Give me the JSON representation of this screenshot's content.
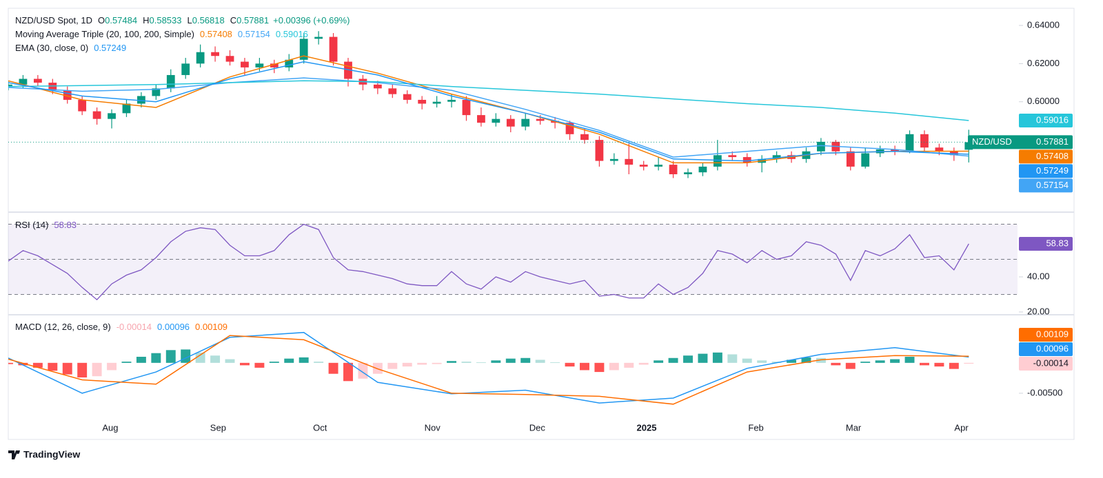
{
  "brand": "TradingView",
  "chart_data": [
    {
      "type": "candlestick",
      "title": "NZD/USD Spot, 1D",
      "ohlc_labels": [
        "O",
        "H",
        "L",
        "C"
      ],
      "change": "+0.00396 (+0.69%)",
      "price_label": "NZD/USD",
      "up_color": "#089981",
      "down_color": "#f23645",
      "xlim": [
        0,
        68.3
      ],
      "ylim": [
        0.5425,
        0.649
      ],
      "yticks": [
        {
          "value": 0.64,
          "label": "0.64000"
        },
        {
          "value": 0.62,
          "label": "0.62000"
        },
        {
          "value": 0.6,
          "label": "0.60000"
        }
      ],
      "x_labels": [
        {
          "index": 6.9,
          "label": "Aug"
        },
        {
          "index": 14.2,
          "label": "Sep"
        },
        {
          "index": 21.1,
          "label": "Oct"
        },
        {
          "index": 28.7,
          "label": "Nov"
        },
        {
          "index": 35.8,
          "label": "Dec"
        },
        {
          "index": 43.2,
          "label": "2025",
          "bold": true
        },
        {
          "index": 50.6,
          "label": "Feb"
        },
        {
          "index": 57.2,
          "label": "Mar"
        },
        {
          "index": 64.5,
          "label": "Apr"
        }
      ],
      "ohlc": [
        [
          0.608,
          0.611,
          0.606,
          0.609
        ],
        [
          0.609,
          0.614,
          0.607,
          0.612
        ],
        [
          0.612,
          0.614,
          0.608,
          0.61
        ],
        [
          0.61,
          0.612,
          0.604,
          0.606
        ],
        [
          0.606,
          0.608,
          0.599,
          0.601
        ],
        [
          0.601,
          0.603,
          0.593,
          0.595
        ],
        [
          0.595,
          0.597,
          0.588,
          0.591
        ],
        [
          0.591,
          0.596,
          0.586,
          0.594
        ],
        [
          0.594,
          0.601,
          0.592,
          0.599
        ],
        [
          0.599,
          0.605,
          0.597,
          0.603
        ],
        [
          0.603,
          0.609,
          0.601,
          0.607
        ],
        [
          0.607,
          0.617,
          0.605,
          0.614
        ],
        [
          0.614,
          0.623,
          0.612,
          0.62
        ],
        [
          0.62,
          0.63,
          0.618,
          0.626
        ],
        [
          0.626,
          0.629,
          0.621,
          0.624
        ],
        [
          0.624,
          0.627,
          0.619,
          0.621
        ],
        [
          0.621,
          0.623,
          0.614,
          0.618
        ],
        [
          0.618,
          0.623,
          0.616,
          0.62
        ],
        [
          0.62,
          0.622,
          0.615,
          0.618
        ],
        [
          0.618,
          0.625,
          0.616,
          0.622
        ],
        [
          0.622,
          0.636,
          0.62,
          0.633
        ],
        [
          0.633,
          0.637,
          0.63,
          0.634
        ],
        [
          0.634,
          0.636,
          0.619,
          0.621
        ],
        [
          0.621,
          0.623,
          0.608,
          0.612
        ],
        [
          0.612,
          0.614,
          0.606,
          0.609
        ],
        [
          0.609,
          0.611,
          0.604,
          0.607
        ],
        [
          0.607,
          0.609,
          0.602,
          0.604
        ],
        [
          0.604,
          0.606,
          0.599,
          0.601
        ],
        [
          0.601,
          0.603,
          0.596,
          0.599
        ],
        [
          0.599,
          0.603,
          0.597,
          0.6
        ],
        [
          0.6,
          0.604,
          0.597,
          0.601
        ],
        [
          0.601,
          0.603,
          0.59,
          0.593
        ],
        [
          0.593,
          0.597,
          0.587,
          0.589
        ],
        [
          0.589,
          0.594,
          0.587,
          0.591
        ],
        [
          0.591,
          0.593,
          0.584,
          0.587
        ],
        [
          0.587,
          0.594,
          0.585,
          0.591
        ],
        [
          0.591,
          0.593,
          0.588,
          0.59
        ],
        [
          0.59,
          0.592,
          0.586,
          0.589
        ],
        [
          0.589,
          0.59,
          0.58,
          0.583
        ],
        [
          0.583,
          0.586,
          0.578,
          0.58
        ],
        [
          0.58,
          0.582,
          0.566,
          0.569
        ],
        [
          0.569,
          0.573,
          0.567,
          0.57
        ],
        [
          0.57,
          0.578,
          0.562,
          0.567
        ],
        [
          0.567,
          0.569,
          0.564,
          0.566
        ],
        [
          0.566,
          0.571,
          0.564,
          0.567
        ],
        [
          0.567,
          0.569,
          0.56,
          0.562
        ],
        [
          0.562,
          0.565,
          0.56,
          0.563
        ],
        [
          0.563,
          0.568,
          0.561,
          0.566
        ],
        [
          0.566,
          0.58,
          0.564,
          0.572
        ],
        [
          0.572,
          0.574,
          0.569,
          0.571
        ],
        [
          0.571,
          0.573,
          0.566,
          0.568
        ],
        [
          0.568,
          0.572,
          0.563,
          0.57
        ],
        [
          0.57,
          0.574,
          0.568,
          0.572
        ],
        [
          0.572,
          0.574,
          0.568,
          0.57
        ],
        [
          0.57,
          0.576,
          0.568,
          0.574
        ],
        [
          0.574,
          0.581,
          0.572,
          0.579
        ],
        [
          0.579,
          0.58,
          0.572,
          0.574
        ],
        [
          0.574,
          0.576,
          0.564,
          0.566
        ],
        [
          0.566,
          0.576,
          0.565,
          0.573
        ],
        [
          0.573,
          0.577,
          0.571,
          0.575
        ],
        [
          0.575,
          0.577,
          0.572,
          0.574
        ],
        [
          0.574,
          0.585,
          0.573,
          0.583
        ],
        [
          0.583,
          0.585,
          0.574,
          0.576
        ],
        [
          0.576,
          0.578,
          0.572,
          0.574
        ],
        [
          0.574,
          0.576,
          0.569,
          0.572
        ],
        [
          0.57484,
          0.58533,
          0.56818,
          0.57881
        ]
      ],
      "line_x": [
        0,
        5,
        10,
        15,
        20,
        25,
        30,
        35,
        40,
        45,
        50,
        55,
        60,
        65
      ],
      "studies": [
        {
          "name": "Moving Average Triple (20, 100, 200, Simple)",
          "series": [
            {
              "color": "#f57c00",
              "values": [
                0.611,
                0.601,
                0.597,
                0.613,
                0.624,
                0.615,
                0.604,
                0.594,
                0.583,
                0.568,
                0.568,
                0.573,
                0.574,
                0.57408
              ]
            },
            {
              "color": "#42a5f5",
              "values": [
                0.6075,
                0.6055,
                0.6065,
                0.61,
                0.6125,
                0.61,
                0.606,
                0.596,
                0.585,
                0.571,
                0.574,
                0.577,
                0.575,
                0.57154
              ]
            },
            {
              "color": "#26c6da",
              "values": [
                0.608,
                0.6085,
                0.609,
                0.61,
                0.611,
                0.6105,
                0.608,
                0.606,
                0.604,
                0.6015,
                0.599,
                0.597,
                0.594,
                0.59016
              ]
            }
          ]
        },
        {
          "name": "EMA (30, close, 0)",
          "series": [
            {
              "color": "#2196f3",
              "values": [
                0.61,
                0.603,
                0.6,
                0.612,
                0.621,
                0.614,
                0.603,
                0.594,
                0.584,
                0.57,
                0.569,
                0.573,
                0.574,
                0.57249
              ]
            }
          ]
        }
      ]
    },
    {
      "type": "line",
      "title": "RSI (14)",
      "color": "#7e57c2",
      "band_color": "rgba(126,87,194,0.09)",
      "ylim": [
        18.8,
        76.5
      ],
      "yticks": [
        {
          "value": 40,
          "label": "40.00"
        },
        {
          "value": 20,
          "label": "20.00"
        }
      ],
      "levels": [
        70,
        50,
        30
      ],
      "values": [
        49,
        55,
        52,
        47,
        42,
        34,
        27,
        36,
        41,
        44,
        51,
        60,
        66,
        68,
        67,
        58,
        52,
        52,
        55,
        64,
        70,
        67,
        51,
        44,
        43,
        41,
        39,
        36,
        35,
        35,
        43,
        36,
        33,
        40,
        37,
        43,
        40,
        38,
        36,
        38,
        29,
        30,
        28,
        28,
        36,
        30,
        34,
        42,
        55,
        53,
        48,
        55,
        50,
        52,
        60,
        58,
        53,
        38,
        55,
        52,
        56,
        64,
        51,
        52,
        44,
        58.83
      ]
    },
    {
      "type": "macd",
      "title": "MACD (12, 26, close, 9)",
      "ylim": [
        -0.0126,
        0.0078
      ],
      "yticks": [
        {
          "value": -0.005,
          "label": "-0.00500"
        }
      ],
      "histogram_colors": {
        "grow_above": "#26a69a",
        "fall_above": "#b2dfdb",
        "grow_below": "#ff5252",
        "fall_below": "#ffcdd2"
      },
      "histogram": [
        -0.0002,
        -0.0004,
        -0.0008,
        -0.0013,
        -0.0019,
        -0.0024,
        -0.0022,
        -0.0012,
        0.0002,
        0.001,
        0.0016,
        0.0021,
        0.0022,
        0.0017,
        0.0012,
        0.0006,
        -0.0004,
        -0.0008,
        0.0002,
        0.0007,
        0.0009,
        0.0002,
        -0.0018,
        -0.003,
        -0.0026,
        -0.0018,
        -0.001,
        -0.0006,
        -0.0003,
        -0.0002,
        0.0003,
        0.0002,
        0.0001,
        0.0004,
        0.0007,
        0.0008,
        0.0005,
        0.0001,
        -0.0006,
        -0.0012,
        -0.0015,
        -0.0012,
        -0.0008,
        -0.0003,
        0.0004,
        0.0008,
        0.0012,
        0.0015,
        0.0017,
        0.0014,
        0.0007,
        0.0004,
        0.0002,
        0.0005,
        0.0009,
        0.0008,
        -0.0004,
        -0.001,
        0.0002,
        0.0004,
        0.0006,
        0.001,
        -0.0004,
        -0.0006,
        -0.001,
        -0.00014
      ],
      "line_x": [
        0,
        5,
        10,
        15,
        20,
        25,
        30,
        35,
        40,
        45,
        50,
        55,
        60,
        65
      ],
      "macd": {
        "color": "#2196f3",
        "values": [
          0.0008,
          -0.005,
          -0.0015,
          0.0042,
          0.005,
          -0.0032,
          -0.0051,
          -0.0045,
          -0.0066,
          -0.0058,
          -0.0009,
          0.0014,
          0.0025,
          0.00096
        ]
      },
      "signal": {
        "color": "#ff6d00",
        "values": [
          0.0006,
          -0.0028,
          -0.0035,
          0.0045,
          0.0038,
          -0.001,
          -0.005,
          -0.0052,
          -0.0055,
          -0.0068,
          -0.0015,
          0.0005,
          0.0012,
          0.00109
        ]
      }
    }
  ]
}
